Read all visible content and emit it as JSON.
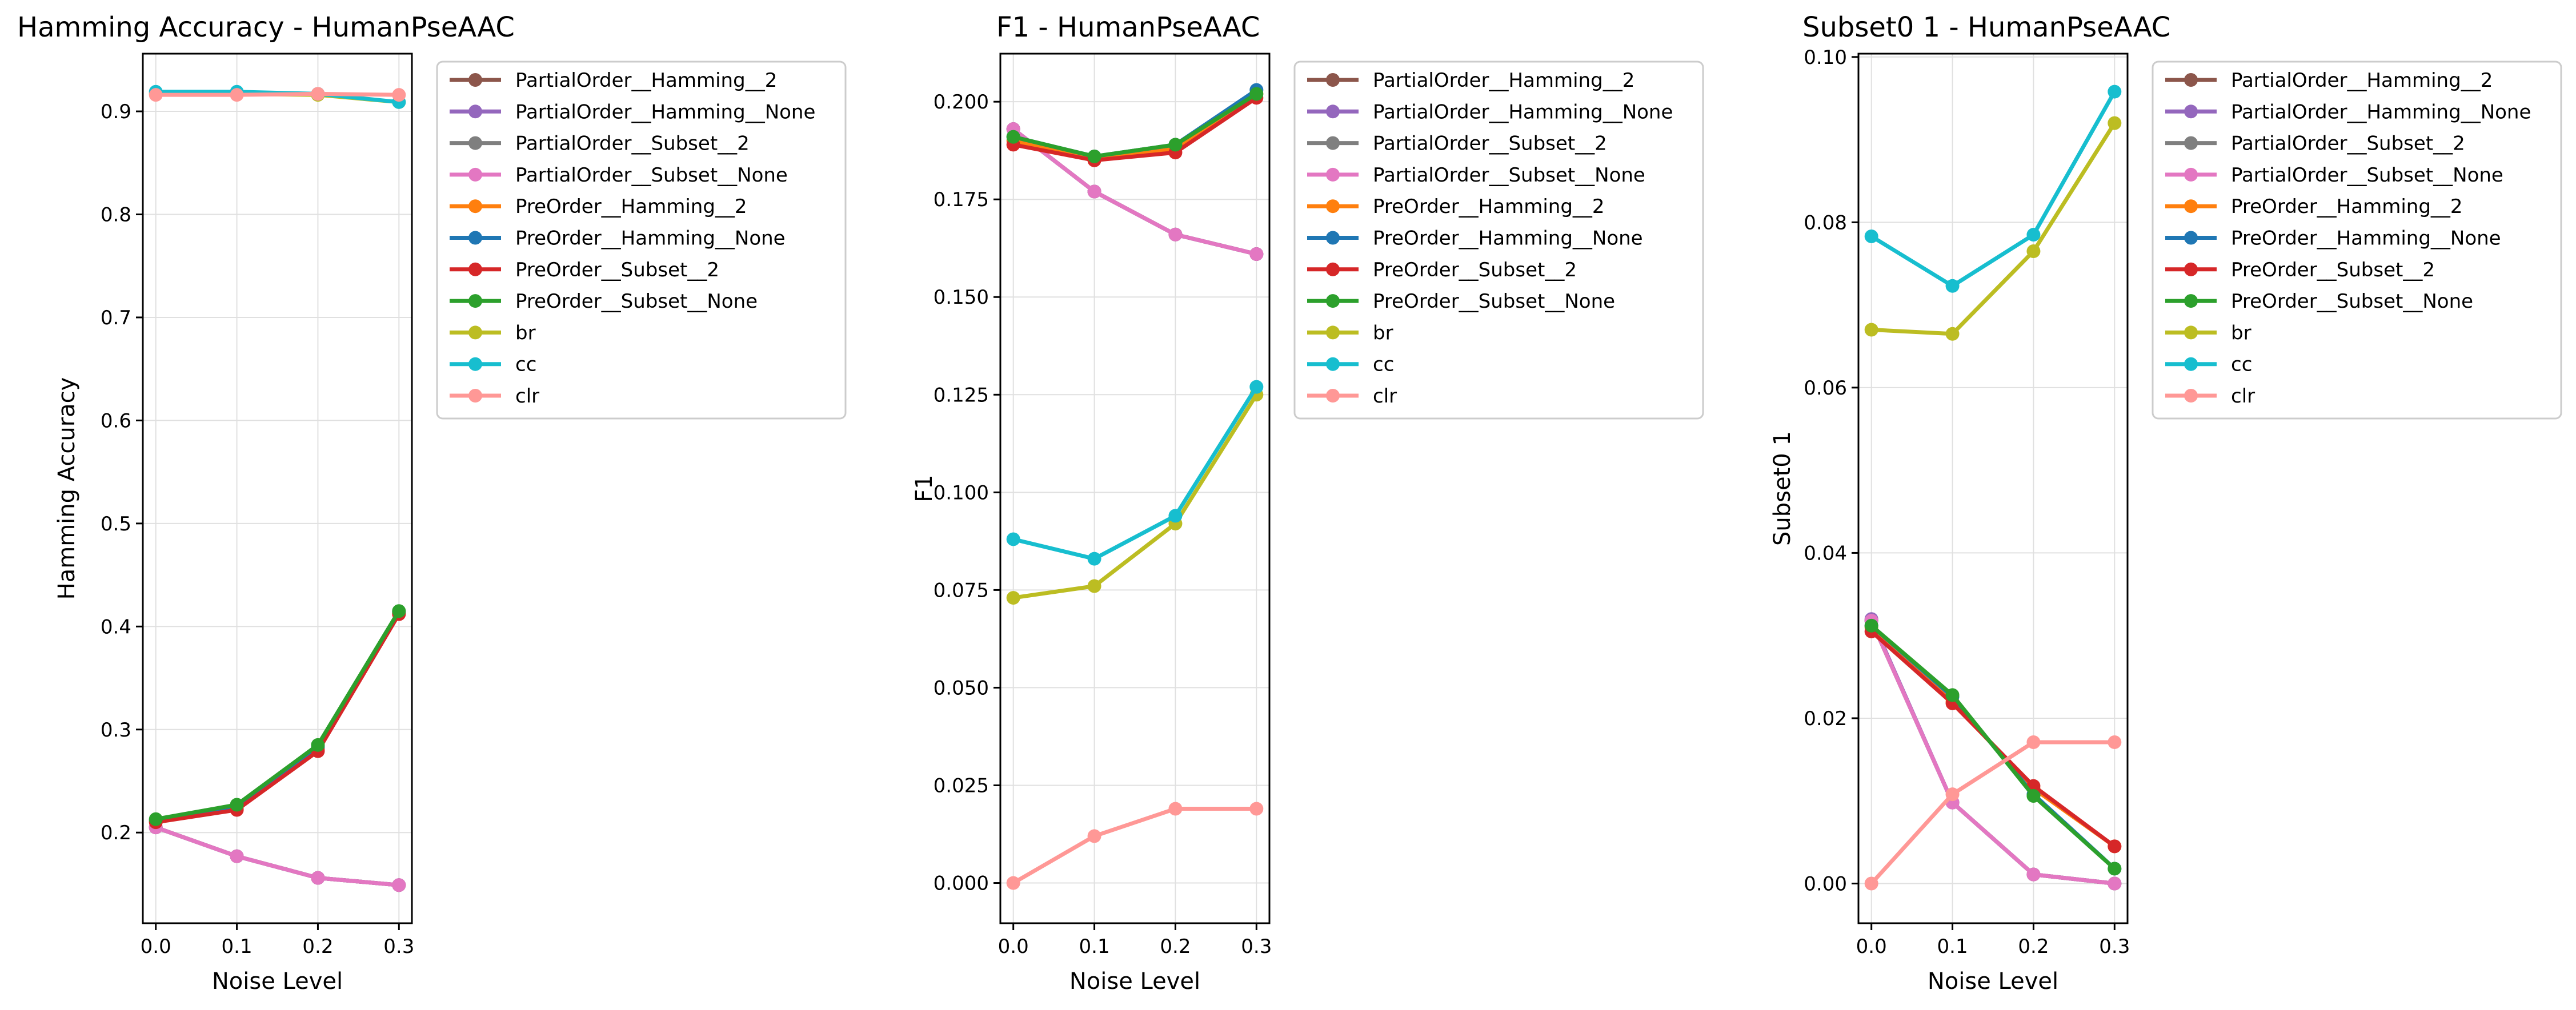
{
  "colors": {
    "PartialOrder__Hamming__2": "#8c564b",
    "PartialOrder__Hamming__None": "#9467bd",
    "PartialOrder__Subset__2": "#7f7f7f",
    "PartialOrder__Subset__None": "#e377c2",
    "PreOrder__Hamming__2": "#ff7f0e",
    "PreOrder__Hamming__None": "#1f77b4",
    "PreOrder__Subset__2": "#d62728",
    "PreOrder__Subset__None": "#2ca02c",
    "br": "#bcbd22",
    "cc": "#17becf",
    "clr": "#ff9896"
  },
  "chart_data": [
    {
      "type": "line",
      "title": "Hamming Accuracy - HumanPseAAC",
      "xlabel": "Noise Level",
      "ylabel": "Hamming Accuracy",
      "x": [
        0.0,
        0.1,
        0.2,
        0.3
      ],
      "xticks": [
        "0.0",
        "0.1",
        "0.2",
        "0.3"
      ],
      "xlim": [
        -0.016,
        0.316
      ],
      "ylim": [
        0.112,
        0.956
      ],
      "yticks": [
        0.2,
        0.3,
        0.4,
        0.5,
        0.6,
        0.7,
        0.8,
        0.9
      ],
      "ytick_labels": [
        "0.2",
        "0.3",
        "0.4",
        "0.5",
        "0.6",
        "0.7",
        "0.8",
        "0.9"
      ],
      "grid": true,
      "legend": "outside-right",
      "series": [
        {
          "name": "PartialOrder__Hamming__2",
          "values": [
            0.205,
            0.177,
            0.156,
            0.149
          ]
        },
        {
          "name": "PartialOrder__Hamming__None",
          "values": [
            0.205,
            0.177,
            0.156,
            0.149
          ]
        },
        {
          "name": "PartialOrder__Subset__2",
          "values": [
            0.205,
            0.177,
            0.156,
            0.149
          ]
        },
        {
          "name": "PartialOrder__Subset__None",
          "values": [
            0.205,
            0.177,
            0.156,
            0.149
          ]
        },
        {
          "name": "PreOrder__Hamming__2",
          "values": [
            0.211,
            0.224,
            0.281,
            0.413
          ]
        },
        {
          "name": "PreOrder__Hamming__None",
          "values": [
            0.212,
            0.226,
            0.283,
            0.414
          ]
        },
        {
          "name": "PreOrder__Subset__2",
          "values": [
            0.21,
            0.222,
            0.279,
            0.412
          ]
        },
        {
          "name": "PreOrder__Subset__None",
          "values": [
            0.213,
            0.227,
            0.285,
            0.415
          ]
        },
        {
          "name": "br",
          "values": [
            0.917,
            0.917,
            0.916,
            0.909
          ]
        },
        {
          "name": "cc",
          "values": [
            0.919,
            0.919,
            0.917,
            0.909
          ]
        },
        {
          "name": "clr",
          "values": [
            0.916,
            0.916,
            0.917,
            0.916
          ]
        }
      ]
    },
    {
      "type": "line",
      "title": "F1 - HumanPseAAC",
      "xlabel": "Noise Level",
      "ylabel": "F1",
      "x": [
        0.0,
        0.1,
        0.2,
        0.3
      ],
      "xticks": [
        "0.0",
        "0.1",
        "0.2",
        "0.3"
      ],
      "xlim": [
        -0.016,
        0.316
      ],
      "ylim": [
        -0.0103,
        0.2123
      ],
      "yticks": [
        0.0,
        0.025,
        0.05,
        0.075,
        0.1,
        0.125,
        0.15,
        0.175,
        0.2
      ],
      "ytick_labels": [
        "0.000",
        "0.025",
        "0.050",
        "0.075",
        "0.100",
        "0.125",
        "0.150",
        "0.175",
        "0.200"
      ],
      "grid": true,
      "legend": "outside-right",
      "series": [
        {
          "name": "PartialOrder__Hamming__2",
          "values": [
            0.193,
            0.177,
            0.166,
            0.161
          ]
        },
        {
          "name": "PartialOrder__Hamming__None",
          "values": [
            0.193,
            0.177,
            0.166,
            0.161
          ]
        },
        {
          "name": "PartialOrder__Subset__2",
          "values": [
            0.193,
            0.177,
            0.166,
            0.161
          ]
        },
        {
          "name": "PartialOrder__Subset__None",
          "values": [
            0.193,
            0.177,
            0.166,
            0.161
          ]
        },
        {
          "name": "PreOrder__Hamming__2",
          "values": [
            0.19,
            0.185,
            0.188,
            0.202
          ]
        },
        {
          "name": "PreOrder__Hamming__None",
          "values": [
            0.191,
            0.186,
            0.189,
            0.203
          ]
        },
        {
          "name": "PreOrder__Subset__2",
          "values": [
            0.189,
            0.185,
            0.187,
            0.201
          ]
        },
        {
          "name": "PreOrder__Subset__None",
          "values": [
            0.191,
            0.186,
            0.189,
            0.202
          ]
        },
        {
          "name": "br",
          "values": [
            0.073,
            0.076,
            0.092,
            0.125
          ]
        },
        {
          "name": "cc",
          "values": [
            0.088,
            0.083,
            0.094,
            0.127
          ]
        },
        {
          "name": "clr",
          "values": [
            0.0,
            0.012,
            0.019,
            0.019
          ]
        }
      ]
    },
    {
      "type": "line",
      "title": "Subset0 1 - HumanPseAAC",
      "xlabel": "Noise Level",
      "ylabel": "Subset0 1",
      "x": [
        0.0,
        0.1,
        0.2,
        0.3
      ],
      "xticks": [
        "0.0",
        "0.1",
        "0.2",
        "0.3"
      ],
      "xlim": [
        -0.016,
        0.316
      ],
      "ylim": [
        -0.0048,
        0.1004
      ],
      "yticks": [
        0.0,
        0.02,
        0.04,
        0.06,
        0.08,
        0.1
      ],
      "ytick_labels": [
        "0.00",
        "0.02",
        "0.04",
        "0.06",
        "0.08",
        "0.10"
      ],
      "grid": true,
      "legend": "outside-right",
      "series": [
        {
          "name": "PartialOrder__Hamming__2",
          "values": [
            0.0318,
            0.0098,
            0.0011,
            0.0
          ]
        },
        {
          "name": "PartialOrder__Hamming__None",
          "values": [
            0.032,
            0.0098,
            0.0011,
            0.0
          ]
        },
        {
          "name": "PartialOrder__Subset__2",
          "values": [
            0.0318,
            0.0098,
            0.0011,
            0.0
          ]
        },
        {
          "name": "PartialOrder__Subset__None",
          "values": [
            0.0318,
            0.0098,
            0.0011,
            0.0
          ]
        },
        {
          "name": "PreOrder__Hamming__2",
          "values": [
            0.031,
            0.022,
            0.0115,
            0.0045
          ]
        },
        {
          "name": "PreOrder__Hamming__None",
          "values": [
            0.0312,
            0.0226,
            0.0108,
            0.0018
          ]
        },
        {
          "name": "PreOrder__Subset__2",
          "values": [
            0.0305,
            0.0218,
            0.0118,
            0.0045
          ]
        },
        {
          "name": "PreOrder__Subset__None",
          "values": [
            0.0312,
            0.0228,
            0.0106,
            0.0018
          ]
        },
        {
          "name": "br",
          "values": [
            0.067,
            0.0665,
            0.0765,
            0.092
          ]
        },
        {
          "name": "cc",
          "values": [
            0.0783,
            0.0723,
            0.0785,
            0.0958
          ]
        },
        {
          "name": "clr",
          "values": [
            0.0,
            0.0108,
            0.0171,
            0.0171
          ]
        }
      ]
    }
  ]
}
